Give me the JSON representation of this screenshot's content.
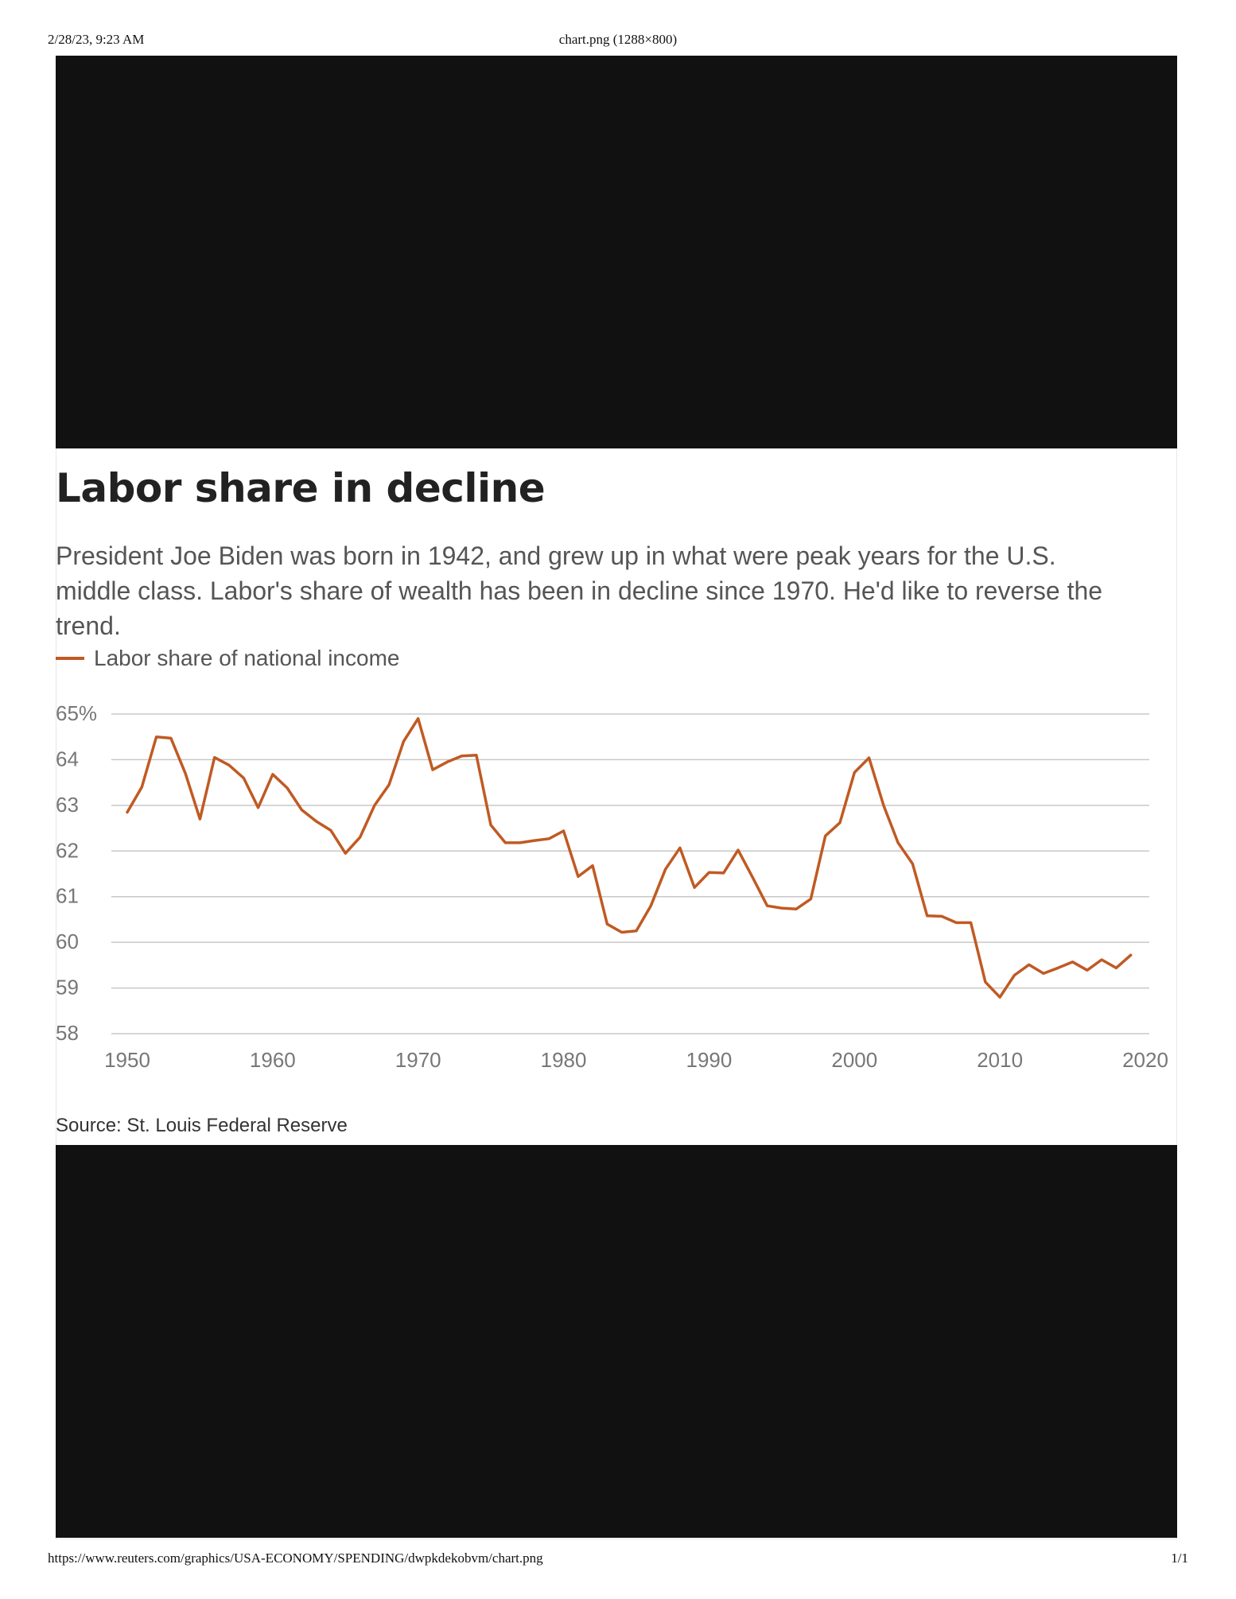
{
  "print": {
    "datetime": "2/28/23, 9:23 AM",
    "doc_title": "chart.png (1288×800)",
    "url": "https://www.reuters.com/graphics/USA-ECONOMY/SPENDING/dwpkdekobvm/chart.png",
    "page": "1/1"
  },
  "colors": {
    "line": "#c05a23",
    "band": "#111111",
    "grid": "#c8c8c8"
  },
  "chart_data": {
    "type": "line",
    "title": "Labor share in decline",
    "subtitle": "President Joe Biden was born in 1942, and grew up in what were peak years for the U.S. middle class. Labor's share of wealth has been in decline since 1970. He'd like to reverse the trend.",
    "source": "Source: St. Louis Federal Reserve",
    "legend_position": "top-left",
    "grid": true,
    "xlabel": "",
    "ylabel": "",
    "xlim": [
      1950,
      2020
    ],
    "ylim": [
      58,
      65
    ],
    "x_ticks": [
      1950,
      1960,
      1970,
      1980,
      1990,
      2000,
      2010,
      2020
    ],
    "y_ticks": [
      65,
      64,
      63,
      62,
      61,
      60,
      59,
      58
    ],
    "y_tick_labels": [
      "65%",
      "64",
      "63",
      "62",
      "61",
      "60",
      "59",
      "58"
    ],
    "series": [
      {
        "name": "Labor share of national income",
        "x": [
          1950,
          1951,
          1952,
          1953,
          1954,
          1955,
          1956,
          1957,
          1958,
          1959,
          1960,
          1961,
          1962,
          1963,
          1964,
          1965,
          1966,
          1967,
          1968,
          1969,
          1970,
          1971,
          1972,
          1973,
          1974,
          1975,
          1976,
          1977,
          1978,
          1979,
          1980,
          1981,
          1982,
          1983,
          1984,
          1985,
          1986,
          1987,
          1988,
          1989,
          1990,
          1991,
          1992,
          1993,
          1994,
          1995,
          1996,
          1997,
          1998,
          1999,
          2000,
          2001,
          2002,
          2003,
          2004,
          2005,
          2006,
          2007,
          2008,
          2009,
          2010,
          2011,
          2012,
          2013,
          2014,
          2015,
          2016,
          2017,
          2018,
          2019
        ],
        "values": [
          62.85,
          63.4,
          64.5,
          64.47,
          63.7,
          62.7,
          64.05,
          63.88,
          63.6,
          62.95,
          63.68,
          63.38,
          62.9,
          62.65,
          62.45,
          61.95,
          62.3,
          63.0,
          63.45,
          64.4,
          64.9,
          63.78,
          63.95,
          64.08,
          64.1,
          62.57,
          62.18,
          62.18,
          62.23,
          62.27,
          62.44,
          61.44,
          61.68,
          60.4,
          60.22,
          60.25,
          60.8,
          61.6,
          62.07,
          61.2,
          61.53,
          61.52,
          62.02,
          61.42,
          60.8,
          60.75,
          60.73,
          60.95,
          62.33,
          62.62,
          63.72,
          64.04,
          63.0,
          62.18,
          61.72,
          60.58,
          60.57,
          60.43,
          60.43,
          59.13,
          58.8,
          59.28,
          59.51,
          59.32,
          59.44,
          59.57,
          59.39,
          59.62,
          59.44,
          59.72
        ]
      }
    ]
  }
}
